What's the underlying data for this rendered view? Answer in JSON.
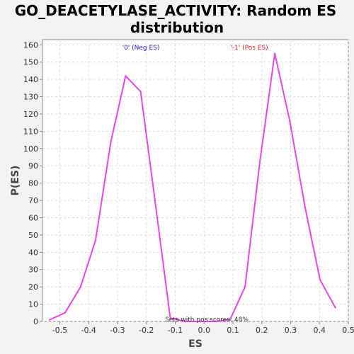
{
  "chart_data": {
    "type": "line",
    "title_lines": [
      "GO_DEACETYLASE_ACTIVITY: Random ES",
      "distribution"
    ],
    "xlabel": "ES",
    "ylabel": "P(ES)",
    "xlim": [
      -0.56,
      0.5
    ],
    "ylim": [
      0,
      163
    ],
    "x_ticks": [
      -0.5,
      -0.4,
      -0.3,
      -0.2,
      -0.1,
      0.0,
      0.1,
      0.2,
      0.3,
      0.4,
      0.5
    ],
    "y_ticks": [
      0,
      10,
      20,
      30,
      40,
      50,
      60,
      70,
      80,
      90,
      100,
      110,
      120,
      130,
      140,
      150,
      160
    ],
    "grid": true,
    "series": [
      {
        "color": "#ee44ee",
        "x": [
          -0.535,
          -0.482,
          -0.428,
          -0.376,
          -0.323,
          -0.272,
          -0.22,
          -0.17,
          -0.117,
          -0.065,
          -0.012,
          0.038,
          0.09,
          0.142,
          0.193,
          0.245,
          0.297,
          0.35,
          0.402,
          0.455
        ],
        "y": [
          1,
          5,
          20,
          47,
          104,
          142,
          133,
          70,
          2,
          0,
          0,
          0,
          1,
          20,
          92,
          155,
          116,
          66,
          24,
          8
        ]
      }
    ],
    "annotations": {
      "neg": {
        "text": "'0' (Neg ES)",
        "color": "#2222cc"
      },
      "pos": {
        "text": "'-1' (Pos ES)",
        "color": "#dd2222"
      },
      "footer": {
        "text": "Sets with pos scores: 48%",
        "color": "#333333"
      }
    }
  }
}
